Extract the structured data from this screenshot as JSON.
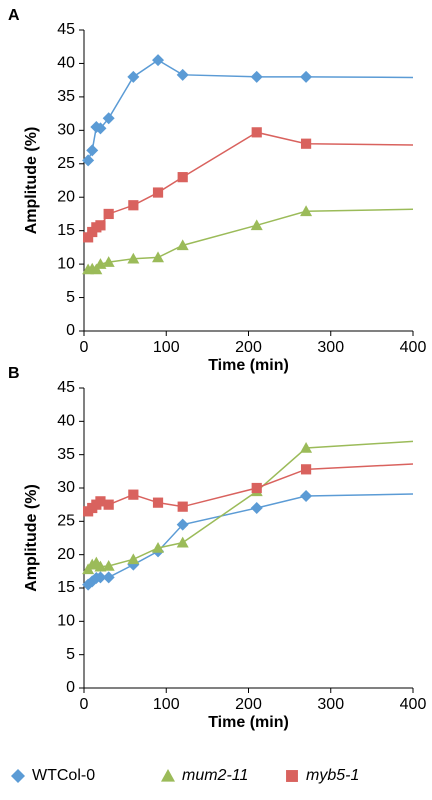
{
  "chart_data": [
    {
      "type": "line",
      "label": "A",
      "xlabel": "Time (min)",
      "ylabel": "Amplitude (%)",
      "x": [
        5,
        10,
        15,
        20,
        30,
        60,
        90,
        120,
        210,
        270,
        400
      ],
      "xlim": [
        0,
        400
      ],
      "xticks": [
        0,
        100,
        200,
        300,
        400
      ],
      "ylim": [
        0,
        45
      ],
      "yticks": [
        0,
        5,
        10,
        15,
        20,
        25,
        30,
        35,
        40,
        45
      ],
      "series": [
        {
          "name": "WTCol-0",
          "color": "#5b9bd5",
          "marker": "diamond",
          "values": [
            25.5,
            27,
            30.5,
            30.3,
            31.8,
            38,
            40.5,
            38.3,
            38,
            38,
            37.9
          ]
        },
        {
          "name": "mum2-11",
          "color": "#9bbb59",
          "marker": "triangle",
          "values": [
            9.2,
            9.3,
            9.2,
            10,
            10.3,
            10.8,
            11,
            12.8,
            15.8,
            17.9,
            18.2
          ]
        },
        {
          "name": "myb5-1",
          "color": "#d9625e",
          "marker": "square",
          "values": [
            14,
            14.8,
            15.5,
            15.8,
            17.5,
            18.8,
            20.7,
            23,
            29.7,
            28,
            27.8
          ]
        }
      ]
    },
    {
      "type": "line",
      "label": "B",
      "xlabel": "Time (min)",
      "ylabel": "Amplitude (%)",
      "x": [
        5,
        10,
        15,
        20,
        30,
        60,
        90,
        120,
        210,
        270,
        400
      ],
      "xlim": [
        0,
        400
      ],
      "xticks": [
        0,
        100,
        200,
        300,
        400
      ],
      "ylim": [
        0,
        45
      ],
      "yticks": [
        0,
        5,
        10,
        15,
        20,
        25,
        30,
        35,
        40,
        45
      ],
      "series": [
        {
          "name": "WTCol-0",
          "color": "#5b9bd5",
          "marker": "diamond",
          "values": [
            15.5,
            16,
            16.5,
            16.6,
            16.6,
            18.5,
            20.5,
            24.5,
            27,
            28.8,
            29.1
          ]
        },
        {
          "name": "mum2-11",
          "color": "#9bbb59",
          "marker": "triangle",
          "values": [
            17.8,
            18.5,
            18.8,
            18.2,
            18.3,
            19.3,
            21,
            21.8,
            29.5,
            36,
            37
          ]
        },
        {
          "name": "myb5-1",
          "color": "#d9625e",
          "marker": "square",
          "values": [
            26.5,
            27,
            27.5,
            28,
            27.5,
            29,
            27.8,
            27.2,
            30,
            32.8,
            33.6
          ]
        }
      ]
    }
  ]
}
